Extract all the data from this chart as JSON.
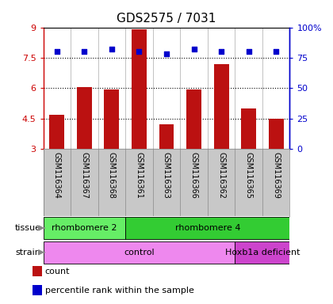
{
  "title": "GDS2575 / 7031",
  "samples": [
    "GSM116364",
    "GSM116367",
    "GSM116368",
    "GSM116361",
    "GSM116363",
    "GSM116366",
    "GSM116362",
    "GSM116365",
    "GSM116369"
  ],
  "counts": [
    4.7,
    6.05,
    5.95,
    8.9,
    4.2,
    5.95,
    7.2,
    5.0,
    4.5
  ],
  "percentiles": [
    80,
    80,
    82,
    80,
    78,
    82,
    80,
    80,
    80
  ],
  "ylim_left": [
    3,
    9
  ],
  "ylim_right": [
    0,
    100
  ],
  "yticks_left": [
    3,
    4.5,
    6,
    7.5,
    9
  ],
  "yticks_right": [
    0,
    25,
    50,
    75,
    100
  ],
  "bar_color": "#bb1111",
  "dot_color": "#0000cc",
  "bg_color": "#ffffff",
  "label_bg": "#c8c8c8",
  "tissue_groups": [
    {
      "label": "rhombomere 2",
      "start": 0,
      "end": 3,
      "color": "#66ee66"
    },
    {
      "label": "rhombomere 4",
      "start": 3,
      "end": 9,
      "color": "#33cc33"
    }
  ],
  "strain_groups": [
    {
      "label": "control",
      "start": 0,
      "end": 7,
      "color": "#ee88ee"
    },
    {
      "label": "Hoxb1a deficient",
      "start": 7,
      "end": 9,
      "color": "#cc44cc"
    }
  ],
  "legend_items": [
    {
      "color": "#bb1111",
      "label": "count"
    },
    {
      "color": "#0000cc",
      "label": "percentile rank within the sample"
    }
  ]
}
